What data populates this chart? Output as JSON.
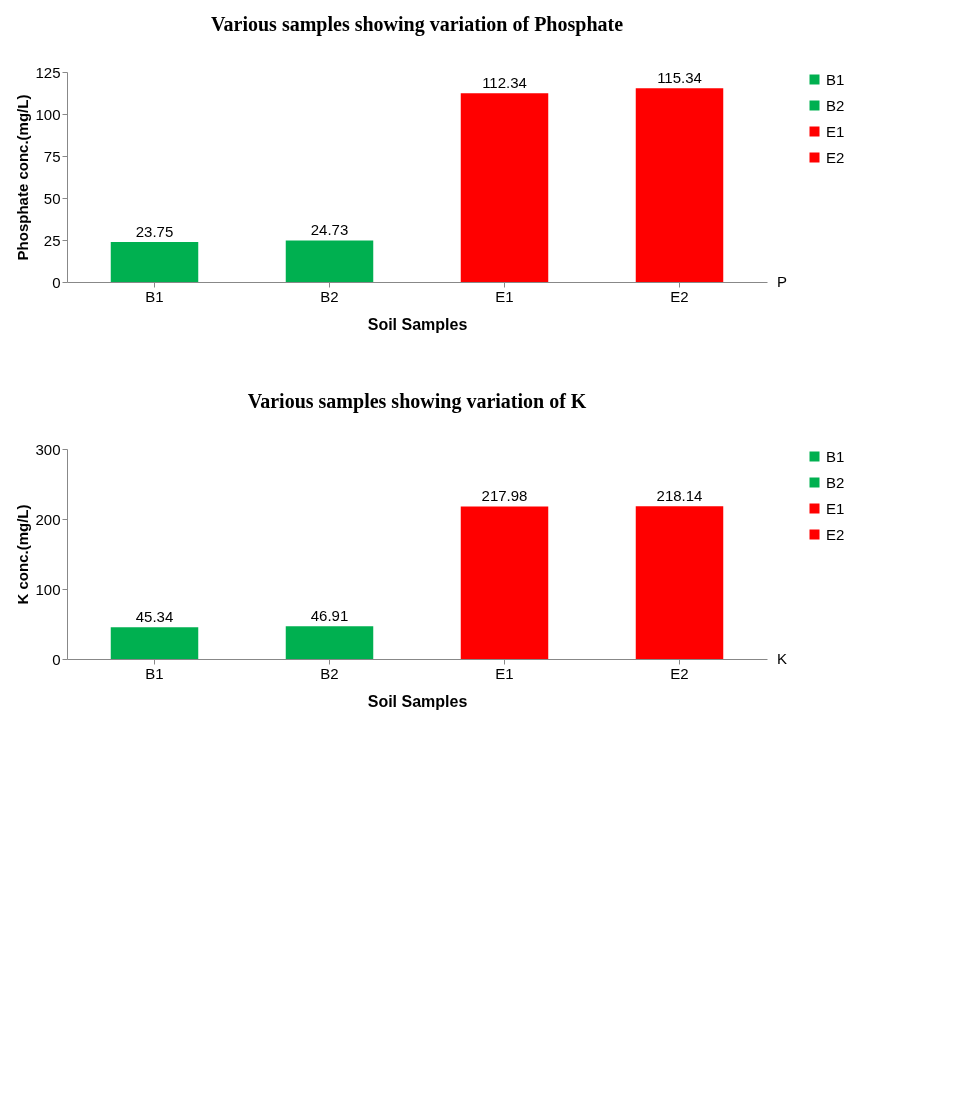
{
  "chart_data": [
    {
      "type": "bar",
      "title": "Various samples  showing variation of Phosphate",
      "xlabel": "Soil Samples",
      "ylabel": "Phosphate conc.(mg/L)",
      "categories": [
        "B1",
        "B2",
        "E1",
        "E2"
      ],
      "series": [
        {
          "name": "P",
          "values": [
            23.75,
            24.73,
            112.34,
            115.34
          ]
        }
      ],
      "colors": [
        "#00b050",
        "#00b050",
        "#ff0000",
        "#ff0000"
      ],
      "ylim": [
        0,
        125
      ],
      "yticks": [
        0,
        25,
        50,
        75,
        100,
        125
      ],
      "data_labels": true,
      "legend": "right"
    },
    {
      "type": "bar",
      "title": "Various samples  showing variation of K",
      "xlabel": "Soil Samples",
      "ylabel": "K conc.(mg/L)",
      "categories": [
        "B1",
        "B2",
        "E1",
        "E2"
      ],
      "series": [
        {
          "name": "K",
          "values": [
            45.34,
            46.91,
            217.98,
            218.14
          ]
        }
      ],
      "colors": [
        "#00b050",
        "#00b050",
        "#ff0000",
        "#ff0000"
      ],
      "ylim": [
        0,
        300
      ],
      "yticks": [
        0,
        100,
        200,
        300
      ],
      "data_labels": true,
      "legend": "right"
    }
  ]
}
